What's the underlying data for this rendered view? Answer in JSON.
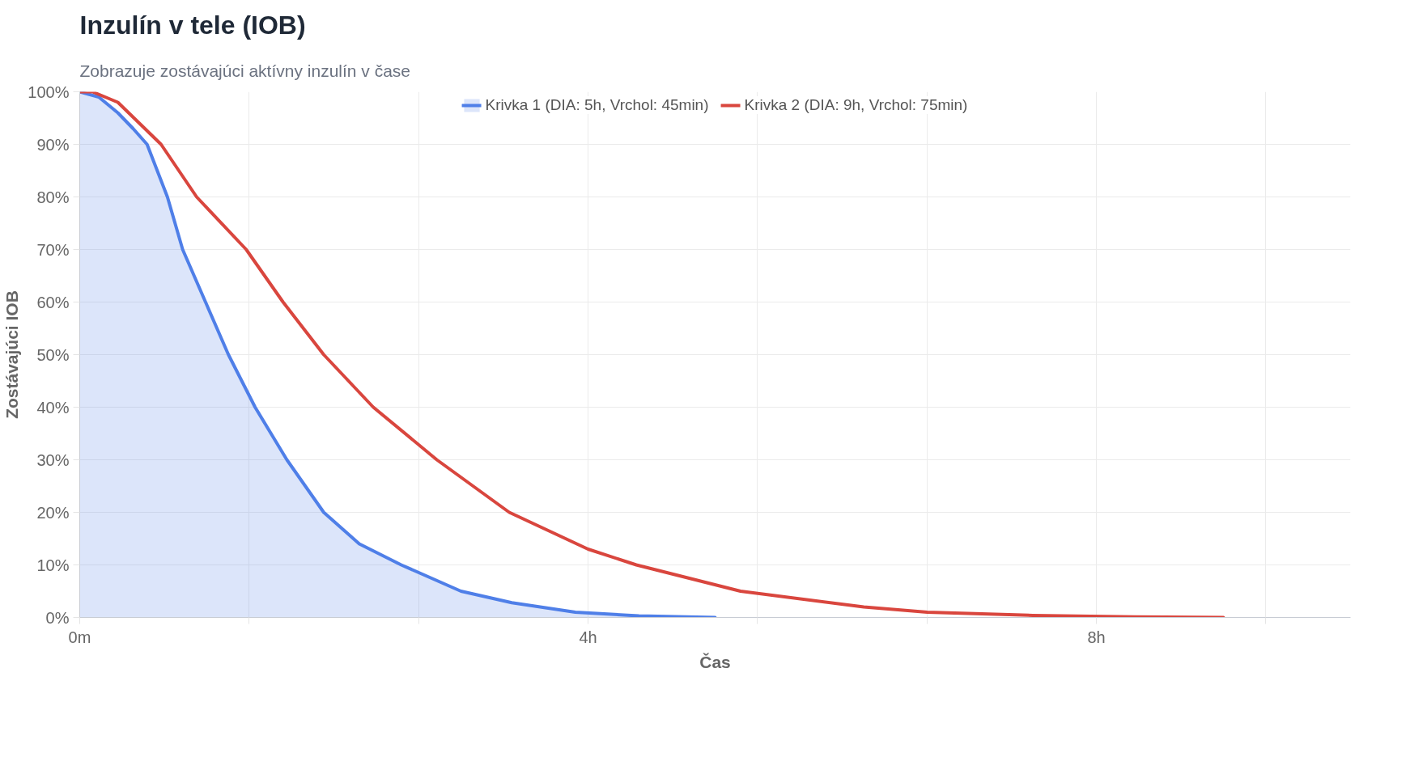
{
  "chart_data": {
    "type": "line",
    "title": "Inzulín v tele (IOB)",
    "subtitle": "Zobrazuje zostávajúci aktívny inzulín v čase",
    "xlabel": "Čas",
    "ylabel": "Zostávajúci IOB",
    "series": [
      {
        "name": "Krivka 1 (DIA: 5h, Vrchol: 45min)",
        "type": "area",
        "color": "#4f7fe8",
        "x": [
          0,
          0.15,
          0.3,
          0.42,
          0.53,
          0.69,
          0.81,
          0.99,
          1.17,
          1.38,
          1.63,
          1.92,
          2.2,
          2.53,
          3.0,
          3.4,
          3.9,
          4.4,
          5.0
        ],
        "values": [
          100,
          99,
          96,
          93,
          90,
          80,
          70,
          60,
          50,
          40,
          30,
          20,
          14,
          10,
          5,
          2.8,
          1,
          0.3,
          0
        ]
      },
      {
        "name": "Krivka 2 (DIA: 9h, Vrchol: 75min)",
        "type": "line",
        "color": "#d9463e",
        "x": [
          0,
          0.1,
          0.3,
          0.64,
          0.92,
          1.31,
          1.6,
          1.92,
          2.31,
          2.81,
          3.38,
          4.0,
          4.38,
          5.2,
          6.17,
          6.67,
          7.5,
          8.3,
          9.0
        ],
        "values": [
          100,
          100,
          98,
          90,
          80,
          70,
          60,
          50,
          40,
          30,
          20,
          13,
          10,
          5,
          2,
          1,
          0.4,
          0.1,
          0
        ]
      }
    ],
    "xlim": [
      0,
      10
    ],
    "ylim": [
      0,
      100
    ],
    "xticks": [
      {
        "value": 0,
        "label": "0m"
      },
      {
        "value": 1.3333,
        "label": null
      },
      {
        "value": 2.6667,
        "label": null
      },
      {
        "value": 4,
        "label": "4h"
      },
      {
        "value": 5.3333,
        "label": null
      },
      {
        "value": 6.6667,
        "label": null
      },
      {
        "value": 8,
        "label": "8h"
      },
      {
        "value": 9.3333,
        "label": null
      }
    ],
    "yticks": [
      {
        "value": 0,
        "label": "0%"
      },
      {
        "value": 10,
        "label": "10%"
      },
      {
        "value": 20,
        "label": "20%"
      },
      {
        "value": 30,
        "label": "30%"
      },
      {
        "value": 40,
        "label": "40%"
      },
      {
        "value": 50,
        "label": "50%"
      },
      {
        "value": 60,
        "label": "60%"
      },
      {
        "value": 70,
        "label": "70%"
      },
      {
        "value": 80,
        "label": "80%"
      },
      {
        "value": 90,
        "label": "90%"
      },
      {
        "value": 100,
        "label": "100%"
      }
    ],
    "grid": true,
    "legend": "top"
  }
}
